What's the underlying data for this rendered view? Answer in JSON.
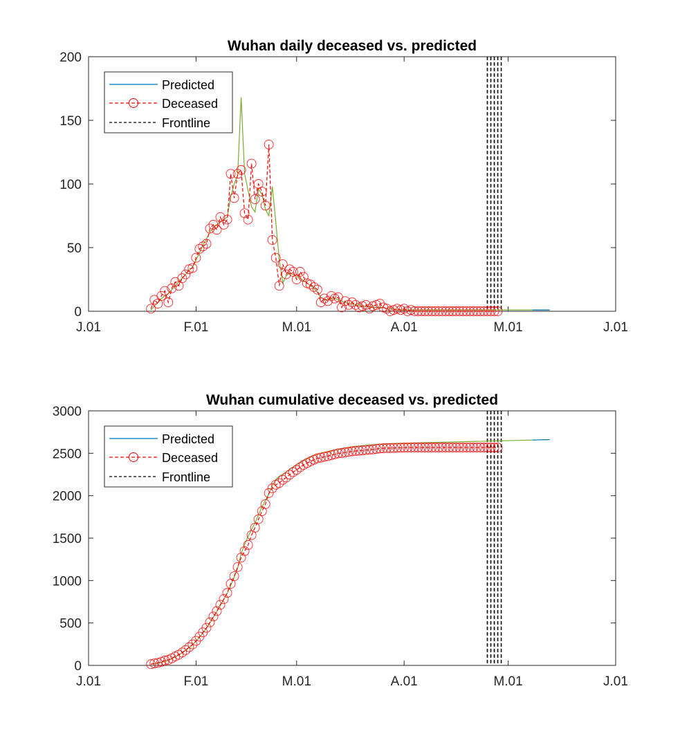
{
  "chart_data": [
    {
      "type": "line",
      "title": "Wuhan daily deceased vs. predicted",
      "xlabel": "",
      "ylabel": "",
      "x_unit": "day of year (0 = Jan 1)",
      "xlim": [
        0,
        152
      ],
      "ylim": [
        0,
        200
      ],
      "yticks": [
        0,
        50,
        100,
        150,
        200
      ],
      "xticks": [
        0,
        31,
        60,
        91,
        121,
        152
      ],
      "xtick_labels": [
        "J.01",
        "F.01",
        "M.01",
        "A.01",
        "M.01",
        "J.01"
      ],
      "legend": [
        "Predicted",
        "Deceased",
        "Frontline"
      ],
      "legend_position": "top-left",
      "grid": false,
      "colors": {
        "predicted": "#0072BD",
        "predicted_visible": "#77AC30",
        "deceased": "#FF0000",
        "frontline": "#000000"
      },
      "frontline_days": [
        115,
        116,
        117,
        118,
        119
      ],
      "deceased_start_day": 18,
      "deceased": [
        2,
        9,
        6,
        12,
        16,
        7,
        18,
        23,
        20,
        26,
        29,
        33,
        34,
        42,
        49,
        51,
        53,
        65,
        68,
        64,
        74,
        68,
        72,
        108,
        89,
        108,
        111,
        77,
        72,
        116,
        88,
        100,
        94,
        83,
        131,
        56,
        42,
        20,
        37,
        29,
        33,
        31,
        25,
        31,
        27,
        22,
        21,
        19,
        17,
        7,
        10,
        8,
        12,
        10,
        11,
        3,
        8,
        5,
        7,
        5,
        3,
        4,
        5,
        2,
        4,
        5,
        6,
        3,
        2,
        0,
        1,
        2,
        1,
        2,
        0,
        1,
        0,
        0,
        0,
        0,
        0,
        0,
        0,
        0,
        0,
        0,
        0,
        0,
        0,
        0,
        0,
        0,
        0,
        0,
        0,
        0,
        0,
        0,
        0,
        0,
        0
      ],
      "predicted_start_day": 18,
      "predicted": [
        1,
        4,
        7,
        10,
        12,
        14,
        17,
        20,
        23,
        26,
        29,
        32,
        35,
        40,
        46,
        52,
        57,
        62,
        66,
        68,
        70,
        72,
        74,
        90,
        100,
        107,
        168,
        108,
        95,
        82,
        78,
        96,
        92,
        80,
        75,
        98,
        70,
        40,
        22,
        28,
        30,
        29,
        27,
        26,
        24,
        22,
        20,
        18,
        15,
        11,
        9,
        9,
        10,
        10,
        9,
        8,
        7,
        6,
        6,
        5,
        5,
        4,
        4,
        4,
        3,
        3,
        3,
        3,
        2,
        2,
        2,
        1,
        1,
        1,
        1,
        1,
        1,
        1,
        1,
        1,
        1,
        1,
        1,
        1,
        1,
        1,
        1,
        1,
        1,
        1,
        1,
        1,
        1,
        1,
        1,
        1,
        1,
        1,
        1,
        1,
        1,
        1,
        1,
        1,
        1,
        1,
        1,
        1,
        1,
        1,
        1,
        1,
        1,
        1,
        1,
        1
      ]
    },
    {
      "type": "line",
      "title": "Wuhan cumulative deceased vs. predicted",
      "xlabel": "",
      "ylabel": "",
      "xlim": [
        0,
        152
      ],
      "ylim": [
        0,
        3000
      ],
      "yticks": [
        0,
        500,
        1000,
        1500,
        2000,
        2500,
        3000
      ],
      "xticks": [
        0,
        31,
        60,
        91,
        121,
        152
      ],
      "xtick_labels": [
        "J.01",
        "F.01",
        "M.01",
        "A.01",
        "M.01",
        "J.01"
      ],
      "legend": [
        "Predicted",
        "Deceased",
        "Frontline"
      ],
      "legend_position": "top-left",
      "grid": false,
      "cumulative_of": "daily series above",
      "cumulative_start_value": 15,
      "frontline_days": [
        115,
        116,
        117,
        118,
        119
      ]
    }
  ]
}
